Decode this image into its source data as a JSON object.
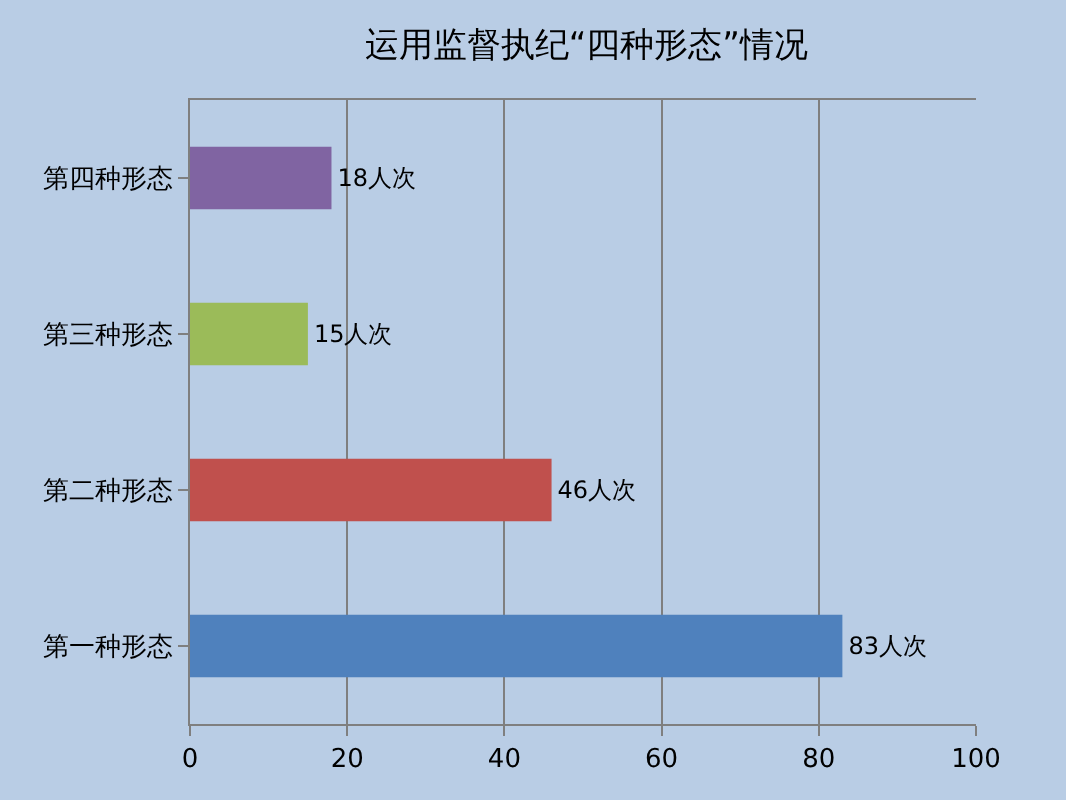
{
  "chart_data": {
    "type": "bar",
    "orientation": "horizontal",
    "title": "运用监督执纪“四种形态”情况",
    "categories": [
      "第四种形态",
      "第三种形态",
      "第二种形态",
      "第一种形态"
    ],
    "values": [
      18,
      15,
      46,
      83
    ],
    "colors": [
      "#8064a2",
      "#9bbb59",
      "#c0504d",
      "#4f81bd"
    ],
    "value_labels": [
      "18人次",
      "15人次",
      "46人次",
      "83人次"
    ],
    "xlim": [
      0,
      100
    ],
    "xticks": [
      0,
      20,
      40,
      60,
      80,
      100
    ],
    "grid": "x"
  }
}
